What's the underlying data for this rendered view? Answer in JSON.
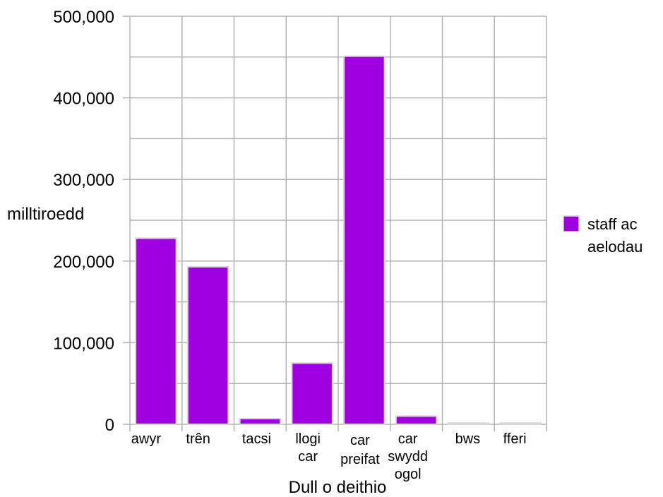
{
  "chart_data": {
    "type": "bar",
    "title": "",
    "xlabel": "Dull o deithio",
    "ylabel": "milltiroedd",
    "categories": [
      [
        "awyr"
      ],
      [
        "trên"
      ],
      [
        "tacsi"
      ],
      [
        "llogi",
        "car"
      ],
      [
        "car",
        "preifat"
      ],
      [
        "car",
        "swydd",
        "ogol"
      ],
      [
        "bws"
      ],
      [
        "fferi"
      ]
    ],
    "series": [
      {
        "name": "staff ac aelodau",
        "legend_lines": [
          "staff ac",
          "aelodau"
        ],
        "color": "#a000e0",
        "values": [
          228000,
          193000,
          7000,
          75000,
          451000,
          10000,
          1500,
          1500
        ]
      }
    ],
    "ylim": [
      0,
      500000
    ],
    "yticks": [
      0,
      100000,
      200000,
      300000,
      400000,
      500000
    ],
    "ytick_labels": [
      "0",
      "100,000",
      "200,000",
      "300,000",
      "400,000",
      "500,000"
    ],
    "grid": true,
    "legend_position": "right"
  }
}
